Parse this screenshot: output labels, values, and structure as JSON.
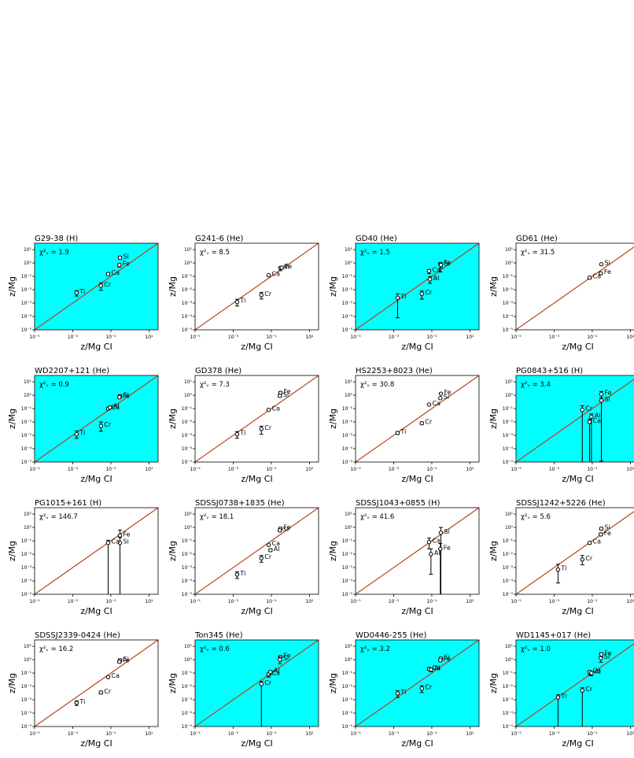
{
  "colors": {
    "cyan_background": "#00ffff",
    "one_to_one_line": "#b5461a",
    "marker": "#000000"
  },
  "common": {
    "xlabel": "z/Mg CI",
    "ylabel": "z/Mg",
    "x_ticks": [
      "10⁻⁵",
      "10⁻³",
      "10⁻¹",
      "10¹"
    ],
    "y_ticks": [
      "10⁻⁵",
      "10⁻⁴",
      "10⁻³",
      "10⁻²",
      "10⁻¹",
      "10⁰",
      "10¹"
    ]
  },
  "chart_data": [
    {
      "type": "scatter",
      "title": "G29-38 (H)",
      "chi_label": "χ²ᵥ = 1.9",
      "background": "cyan",
      "xlabel": "z/Mg CI",
      "ylabel": "z/Mg",
      "xscale": "log",
      "yscale": "log",
      "xlim": [
        1e-05,
        30
      ],
      "ylim": [
        1e-05,
        30
      ],
      "points": [
        {
          "label": "Ca",
          "x": 0.072,
          "y": 0.15,
          "elow": 0.1,
          "ehigh": 0.1
        },
        {
          "label": "Cr",
          "x": 0.03,
          "y": 0.02,
          "elow": 0.35,
          "ehigh": 0.2
        },
        {
          "label": "Ti",
          "x": 0.0016,
          "y": 0.006,
          "elow": 0.25,
          "ehigh": 0.15
        },
        {
          "label": "Si",
          "x": 0.3,
          "y": 2.5,
          "elow": 0.1,
          "ehigh": 0.1
        },
        {
          "label": "Fe",
          "x": 0.28,
          "y": 0.7,
          "elow": 0.15,
          "ehigh": 0.1
        }
      ]
    },
    {
      "type": "scatter",
      "title": "G241-6 (He)",
      "chi_label": "χ²ᵥ = 8.5",
      "background": "white",
      "xlabel": "z/Mg CI",
      "ylabel": "z/Mg",
      "xscale": "log",
      "yscale": "log",
      "xlim": [
        1e-05,
        30
      ],
      "ylim": [
        1e-05,
        30
      ],
      "points": [
        {
          "label": "Ca",
          "x": 0.072,
          "y": 0.12,
          "elow": 0.05,
          "ehigh": 0.05
        },
        {
          "label": "Cr",
          "x": 0.03,
          "y": 0.004,
          "elow": 0.3,
          "ehigh": 0.2
        },
        {
          "label": "Ti",
          "x": 0.0016,
          "y": 0.0012,
          "elow": 0.3,
          "ehigh": 0.2
        },
        {
          "label": "Si",
          "x": 0.3,
          "y": 0.42,
          "elow": 0.2,
          "ehigh": 0.1
        },
        {
          "label": "Fe",
          "x": 0.35,
          "y": 0.45,
          "elow": 0.1,
          "ehigh": 0.1
        }
      ]
    },
    {
      "type": "scatter",
      "title": "GD40 (He)",
      "chi_label": "χ²ᵥ = 1.5",
      "background": "cyan",
      "xlabel": "z/Mg CI",
      "ylabel": "z/Mg",
      "xscale": "log",
      "yscale": "log",
      "xlim": [
        1e-05,
        30
      ],
      "ylim": [
        1e-05,
        30
      ],
      "points": [
        {
          "label": "Ca",
          "x": 0.072,
          "y": 0.25,
          "elow": 0.2,
          "ehigh": 0.1
        },
        {
          "label": "Cr",
          "x": 0.03,
          "y": 0.005,
          "elow": 0.4,
          "ehigh": 0.2
        },
        {
          "label": "Ti",
          "x": 0.0016,
          "y": 0.0025,
          "elow": 1.5,
          "ehigh": 0.3
        },
        {
          "label": "Al",
          "x": 0.08,
          "y": 0.06,
          "elow": 0.3,
          "ehigh": 0.2
        },
        {
          "label": "Fe",
          "x": 0.28,
          "y": 0.85,
          "elow": 0.6,
          "ehigh": 0.1
        },
        {
          "label": "Si",
          "x": 0.3,
          "y": 0.7,
          "elow": 0.2,
          "ehigh": 0.1
        }
      ]
    },
    {
      "type": "scatter",
      "title": "GD61 (He)",
      "chi_label": "χ²ᵥ = 31.5",
      "background": "white",
      "xlabel": "z/Mg CI",
      "ylabel": "z/Mg",
      "xscale": "log",
      "yscale": "log",
      "xlim": [
        1e-05,
        30
      ],
      "ylim": [
        1e-05,
        30
      ],
      "points": [
        {
          "label": "Ca",
          "x": 0.072,
          "y": 0.08,
          "elow": 0.1,
          "ehigh": 0.05
        },
        {
          "label": "Si",
          "x": 0.3,
          "y": 0.8,
          "elow": 0.05,
          "ehigh": 0.05
        },
        {
          "label": "Fe",
          "x": 0.28,
          "y": 0.17,
          "elow": 0.1,
          "ehigh": 0.05
        }
      ]
    },
    {
      "type": "scatter",
      "title": "WD2207+121 (He)",
      "chi_label": "χ²ᵥ = 0.9",
      "background": "cyan",
      "xlabel": "z/Mg CI",
      "ylabel": "z/Mg",
      "xscale": "log",
      "yscale": "log",
      "xlim": [
        1e-05,
        30
      ],
      "ylim": [
        1e-05,
        30
      ],
      "points": [
        {
          "label": "Ca",
          "x": 0.072,
          "y": 0.1,
          "elow": 0.1,
          "ehigh": 0.1
        },
        {
          "label": "Al",
          "x": 0.09,
          "y": 0.12,
          "elow": 0.1,
          "ehigh": 0.1
        },
        {
          "label": "Cr",
          "x": 0.03,
          "y": 0.005,
          "elow": 0.4,
          "ehigh": 0.3
        },
        {
          "label": "Ti",
          "x": 0.0016,
          "y": 0.0012,
          "elow": 0.3,
          "ehigh": 0.25
        },
        {
          "label": "Si",
          "x": 0.3,
          "y": 0.85,
          "elow": 0.1,
          "ehigh": 0.1
        },
        {
          "label": "Fe",
          "x": 0.28,
          "y": 0.7,
          "elow": 0.1,
          "ehigh": 0.1
        }
      ]
    },
    {
      "type": "scatter",
      "title": "GD378 (He)",
      "chi_label": "χ²ᵥ = 7.3",
      "background": "white",
      "xlabel": "z/Mg CI",
      "ylabel": "z/Mg",
      "xscale": "log",
      "yscale": "log",
      "xlim": [
        1e-05,
        30
      ],
      "ylim": [
        1e-05,
        30
      ],
      "points": [
        {
          "label": "Ca",
          "x": 0.072,
          "y": 0.08,
          "elow": 0.05,
          "ehigh": 0.05
        },
        {
          "label": "Cr",
          "x": 0.03,
          "y": 0.003,
          "elow": 0.4,
          "ehigh": 0.2
        },
        {
          "label": "Ti",
          "x": 0.0016,
          "y": 0.0012,
          "elow": 0.3,
          "ehigh": 0.2
        },
        {
          "label": "Fe",
          "x": 0.3,
          "y": 1.5,
          "elow": 0.1,
          "ehigh": 0.1
        },
        {
          "label": "Si",
          "x": 0.28,
          "y": 0.9,
          "elow": 0.1,
          "ehigh": 0.1
        }
      ]
    },
    {
      "type": "scatter",
      "title": "HS2253+8023 (He)",
      "chi_label": "χ²ᵥ = 30.8",
      "background": "white",
      "xlabel": "z/Mg CI",
      "ylabel": "z/Mg",
      "xscale": "log",
      "yscale": "log",
      "xlim": [
        1e-05,
        30
      ],
      "ylim": [
        1e-05,
        30
      ],
      "points": [
        {
          "label": "Ca",
          "x": 0.072,
          "y": 0.2,
          "elow": 0.05,
          "ehigh": 0.05
        },
        {
          "label": "Cr",
          "x": 0.03,
          "y": 0.008,
          "elow": 0.1,
          "ehigh": 0.1
        },
        {
          "label": "Ti",
          "x": 0.0016,
          "y": 0.0015,
          "elow": 0.1,
          "ehigh": 0.1
        },
        {
          "label": "Fe",
          "x": 0.3,
          "y": 1.3,
          "elow": 0.05,
          "ehigh": 0.05
        },
        {
          "label": "Si",
          "x": 0.28,
          "y": 0.6,
          "elow": 0.05,
          "ehigh": 0.05
        }
      ]
    },
    {
      "type": "scatter",
      "title": "PG0843+516 (H)",
      "chi_label": "χ²ᵥ = 3.4",
      "background": "cyan",
      "xlabel": "z/Mg CI",
      "ylabel": "z/Mg",
      "xscale": "log",
      "yscale": "log",
      "xlim": [
        1e-05,
        30
      ],
      "ylim": [
        1e-05,
        30
      ],
      "points": [
        {
          "label": "Cr",
          "x": 0.03,
          "y": 0.08,
          "elow": 5,
          "ehigh": 0.3
        },
        {
          "label": "Al",
          "x": 0.09,
          "y": 0.025,
          "elow": 5,
          "ehigh": 0.2
        },
        {
          "label": "Ca",
          "x": 0.072,
          "y": 0.01,
          "elow": 5,
          "ehigh": 0.2
        },
        {
          "label": "Fe",
          "x": 0.3,
          "y": 1.2,
          "elow": 5,
          "ehigh": 0.2
        },
        {
          "label": "Si",
          "x": 0.3,
          "y": 0.4,
          "elow": 5,
          "ehigh": 0.2
        }
      ]
    },
    {
      "type": "scatter",
      "title": "PG1015+161 (H)",
      "chi_label": "χ²ᵥ = 146.7",
      "background": "white",
      "xlabel": "z/Mg CI",
      "ylabel": "z/Mg",
      "xscale": "log",
      "yscale": "log",
      "xlim": [
        1e-05,
        30
      ],
      "ylim": [
        1e-05,
        30
      ],
      "points": [
        {
          "label": "Ca",
          "x": 0.072,
          "y": 0.07,
          "elow": 5,
          "ehigh": 0.2
        },
        {
          "label": "Fe",
          "x": 0.3,
          "y": 0.25,
          "elow": 5,
          "ehigh": 0.4
        },
        {
          "label": "Si",
          "x": 0.3,
          "y": 0.07,
          "elow": 5,
          "ehigh": 0.4
        }
      ]
    },
    {
      "type": "scatter",
      "title": "SDSSJ0738+1835 (He)",
      "chi_label": "χ²ᵥ = 18.1",
      "background": "white",
      "xlabel": "z/Mg CI",
      "ylabel": "z/Mg",
      "xscale": "log",
      "yscale": "log",
      "xlim": [
        1e-05,
        30
      ],
      "ylim": [
        1e-05,
        30
      ],
      "points": [
        {
          "label": "Ca",
          "x": 0.072,
          "y": 0.05,
          "elow": 0.05,
          "ehigh": 0.05
        },
        {
          "label": "Al",
          "x": 0.09,
          "y": 0.02,
          "elow": 0.1,
          "ehigh": 0.1
        },
        {
          "label": "Cr",
          "x": 0.03,
          "y": 0.005,
          "elow": 0.3,
          "ehigh": 0.2
        },
        {
          "label": "Ti",
          "x": 0.0016,
          "y": 0.0003,
          "elow": 0.3,
          "ehigh": 0.2
        },
        {
          "label": "Fe",
          "x": 0.3,
          "y": 0.8,
          "elow": 0.1,
          "ehigh": 0.1
        },
        {
          "label": "Si",
          "x": 0.28,
          "y": 0.6,
          "elow": 0.1,
          "ehigh": 0.1
        }
      ]
    },
    {
      "type": "scatter",
      "title": "SDSSJ1043+0855 (H)",
      "chi_label": "χ²ᵥ = 41.6",
      "background": "white",
      "xlabel": "z/Mg CI",
      "ylabel": "z/Mg",
      "xscale": "log",
      "yscale": "log",
      "xlim": [
        1e-05,
        30
      ],
      "ylim": [
        1e-05,
        30
      ],
      "points": [
        {
          "label": "Ca",
          "x": 0.072,
          "y": 0.08,
          "elow": 0.5,
          "ehigh": 0.3
        },
        {
          "label": "Al",
          "x": 0.09,
          "y": 0.01,
          "elow": 1.5,
          "ehigh": 0.4
        },
        {
          "label": "Si",
          "x": 0.3,
          "y": 0.4,
          "elow": 5,
          "ehigh": 0.4
        },
        {
          "label": "Fe",
          "x": 0.28,
          "y": 0.025,
          "elow": 5,
          "ehigh": 0.4
        }
      ]
    },
    {
      "type": "scatter",
      "title": "SDSSJ1242+5226 (He)",
      "chi_label": "χ²ᵥ = 5.6",
      "background": "white",
      "xlabel": "z/Mg CI",
      "ylabel": "z/Mg",
      "xscale": "log",
      "yscale": "log",
      "xlim": [
        1e-05,
        30
      ],
      "ylim": [
        1e-05,
        30
      ],
      "points": [
        {
          "label": "Ca",
          "x": 0.072,
          "y": 0.07,
          "elow": 0.1,
          "ehigh": 0.05
        },
        {
          "label": "Cr",
          "x": 0.03,
          "y": 0.004,
          "elow": 0.4,
          "ehigh": 0.3
        },
        {
          "label": "Ti",
          "x": 0.0016,
          "y": 0.0007,
          "elow": 1,
          "ehigh": 0.4
        },
        {
          "label": "Si",
          "x": 0.3,
          "y": 0.8,
          "elow": 0.1,
          "ehigh": 0.1
        },
        {
          "label": "Fe",
          "x": 0.28,
          "y": 0.3,
          "elow": 0.1,
          "ehigh": 0.1
        }
      ]
    },
    {
      "type": "scatter",
      "title": "SDSSJ2339-0424 (He)",
      "chi_label": "χ²ᵥ = 16.2",
      "background": "white",
      "xlabel": "z/Mg CI",
      "ylabel": "z/Mg",
      "xscale": "log",
      "yscale": "log",
      "xlim": [
        1e-05,
        30
      ],
      "ylim": [
        1e-05,
        30
      ],
      "points": [
        {
          "label": "Ca",
          "x": 0.072,
          "y": 0.05,
          "elow": 0.05,
          "ehigh": 0.05
        },
        {
          "label": "Cr",
          "x": 0.03,
          "y": 0.0035,
          "elow": 0.1,
          "ehigh": 0.1
        },
        {
          "label": "Ti",
          "x": 0.0016,
          "y": 0.0006,
          "elow": 0.2,
          "ehigh": 0.15
        },
        {
          "label": "Si",
          "x": 0.3,
          "y": 0.9,
          "elow": 0.1,
          "ehigh": 0.1
        },
        {
          "label": "Fe",
          "x": 0.28,
          "y": 0.7,
          "elow": 0.1,
          "ehigh": 0.1
        }
      ]
    },
    {
      "type": "scatter",
      "title": "Ton345 (He)",
      "chi_label": "χ²ᵥ = 0.6",
      "background": "cyan",
      "xlabel": "z/Mg CI",
      "ylabel": "z/Mg",
      "xscale": "log",
      "yscale": "log",
      "xlim": [
        1e-05,
        30
      ],
      "ylim": [
        1e-05,
        30
      ],
      "points": [
        {
          "label": "Cr",
          "x": 0.03,
          "y": 0.015,
          "elow": 5,
          "ehigh": 0.2
        },
        {
          "label": "Ca",
          "x": 0.072,
          "y": 0.08,
          "elow": 0.2,
          "ehigh": 0.1
        },
        {
          "label": "Al",
          "x": 0.09,
          "y": 0.12,
          "elow": 0.2,
          "ehigh": 0.1
        },
        {
          "label": "Fe",
          "x": 0.3,
          "y": 1.6,
          "elow": 0.3,
          "ehigh": 0.1
        },
        {
          "label": "Si",
          "x": 0.28,
          "y": 1.0,
          "elow": 0.3,
          "ehigh": 0.2
        }
      ]
    },
    {
      "type": "scatter",
      "title": "WD0446-255 (He)",
      "chi_label": "χ²ᵥ = 3.2",
      "background": "cyan",
      "xlabel": "z/Mg CI",
      "ylabel": "z/Mg",
      "xscale": "log",
      "yscale": "log",
      "xlim": [
        1e-05,
        30
      ],
      "ylim": [
        1e-05,
        30
      ],
      "points": [
        {
          "label": "Ca",
          "x": 0.072,
          "y": 0.2,
          "elow": 0.1,
          "ehigh": 0.1
        },
        {
          "label": "Al",
          "x": 0.09,
          "y": 0.18,
          "elow": 0.15,
          "ehigh": 0.1
        },
        {
          "label": "Cr",
          "x": 0.03,
          "y": 0.007,
          "elow": 0.3,
          "ehigh": 0.2
        },
        {
          "label": "Ti",
          "x": 0.0016,
          "y": 0.003,
          "elow": 0.3,
          "ehigh": 0.2
        },
        {
          "label": "Si",
          "x": 0.3,
          "y": 1.2,
          "elow": 0.1,
          "ehigh": 0.1
        },
        {
          "label": "Fe",
          "x": 0.28,
          "y": 0.9,
          "elow": 0.1,
          "ehigh": 0.1
        }
      ]
    },
    {
      "type": "scatter",
      "title": "WD1145+017 (He)",
      "chi_label": "χ²ᵥ = 1.0",
      "background": "cyan",
      "xlabel": "z/Mg CI",
      "ylabel": "z/Mg",
      "xscale": "log",
      "yscale": "log",
      "xlim": [
        1e-05,
        30
      ],
      "ylim": [
        1e-05,
        30
      ],
      "points": [
        {
          "label": "Ca",
          "x": 0.072,
          "y": 0.12,
          "elow": 0.2,
          "ehigh": 0.1
        },
        {
          "label": "Al",
          "x": 0.09,
          "y": 0.1,
          "elow": 0.2,
          "ehigh": 0.1
        },
        {
          "label": "Cr",
          "x": 0.03,
          "y": 0.005,
          "elow": 5,
          "ehigh": 0.2
        },
        {
          "label": "Ti",
          "x": 0.0016,
          "y": 0.0015,
          "elow": 5,
          "ehigh": 0.2
        },
        {
          "label": "Fe",
          "x": 0.3,
          "y": 2.5,
          "elow": 0.2,
          "ehigh": 0.1
        },
        {
          "label": "Si",
          "x": 0.28,
          "y": 1.3,
          "elow": 0.3,
          "ehigh": 0.1
        }
      ]
    }
  ]
}
